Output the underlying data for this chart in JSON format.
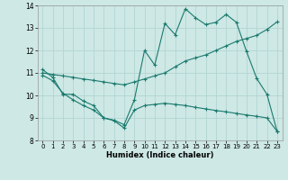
{
  "xlabel": "Humidex (Indice chaleur)",
  "xlim": [
    -0.5,
    23.5
  ],
  "ylim": [
    8,
    14
  ],
  "yticks": [
    8,
    9,
    10,
    11,
    12,
    13,
    14
  ],
  "xticks": [
    0,
    1,
    2,
    3,
    4,
    5,
    6,
    7,
    8,
    9,
    10,
    11,
    12,
    13,
    14,
    15,
    16,
    17,
    18,
    19,
    20,
    21,
    22,
    23
  ],
  "bg_color": "#cde8e5",
  "grid_color": "#b2d5d2",
  "line_color": "#1a7a6e",
  "curve1_x": [
    0,
    1,
    2,
    3,
    4,
    5,
    6,
    7,
    8,
    9,
    10,
    11,
    12,
    13,
    14,
    15,
    16,
    17,
    18,
    19,
    20,
    21,
    22,
    23
  ],
  "curve1_y": [
    11.15,
    10.8,
    10.05,
    10.05,
    9.75,
    9.55,
    9.0,
    8.9,
    8.7,
    9.8,
    12.0,
    11.35,
    13.2,
    12.7,
    13.85,
    13.45,
    13.15,
    13.25,
    13.6,
    13.25,
    11.95,
    10.75,
    10.05,
    8.4
  ],
  "curve2_x": [
    0,
    1,
    2,
    3,
    4,
    5,
    6,
    7,
    8,
    9,
    10,
    11,
    12,
    13,
    14,
    15,
    16,
    17,
    18,
    19,
    20,
    21,
    22,
    23
  ],
  "curve2_y": [
    11.0,
    10.93,
    10.87,
    10.8,
    10.73,
    10.67,
    10.6,
    10.53,
    10.47,
    10.6,
    10.73,
    10.87,
    11.0,
    11.27,
    11.53,
    11.67,
    11.8,
    12.0,
    12.2,
    12.4,
    12.53,
    12.67,
    12.93,
    13.27
  ],
  "curve3_x": [
    0,
    1,
    2,
    3,
    4,
    5,
    6,
    7,
    8,
    9,
    10,
    11,
    12,
    13,
    14,
    15,
    16,
    17,
    18,
    19,
    20,
    21,
    22,
    23
  ],
  "curve3_y": [
    10.9,
    10.65,
    10.1,
    9.8,
    9.55,
    9.35,
    9.0,
    8.88,
    8.55,
    9.35,
    9.55,
    9.6,
    9.65,
    9.6,
    9.55,
    9.47,
    9.4,
    9.33,
    9.27,
    9.2,
    9.13,
    9.07,
    9.0,
    8.4
  ]
}
